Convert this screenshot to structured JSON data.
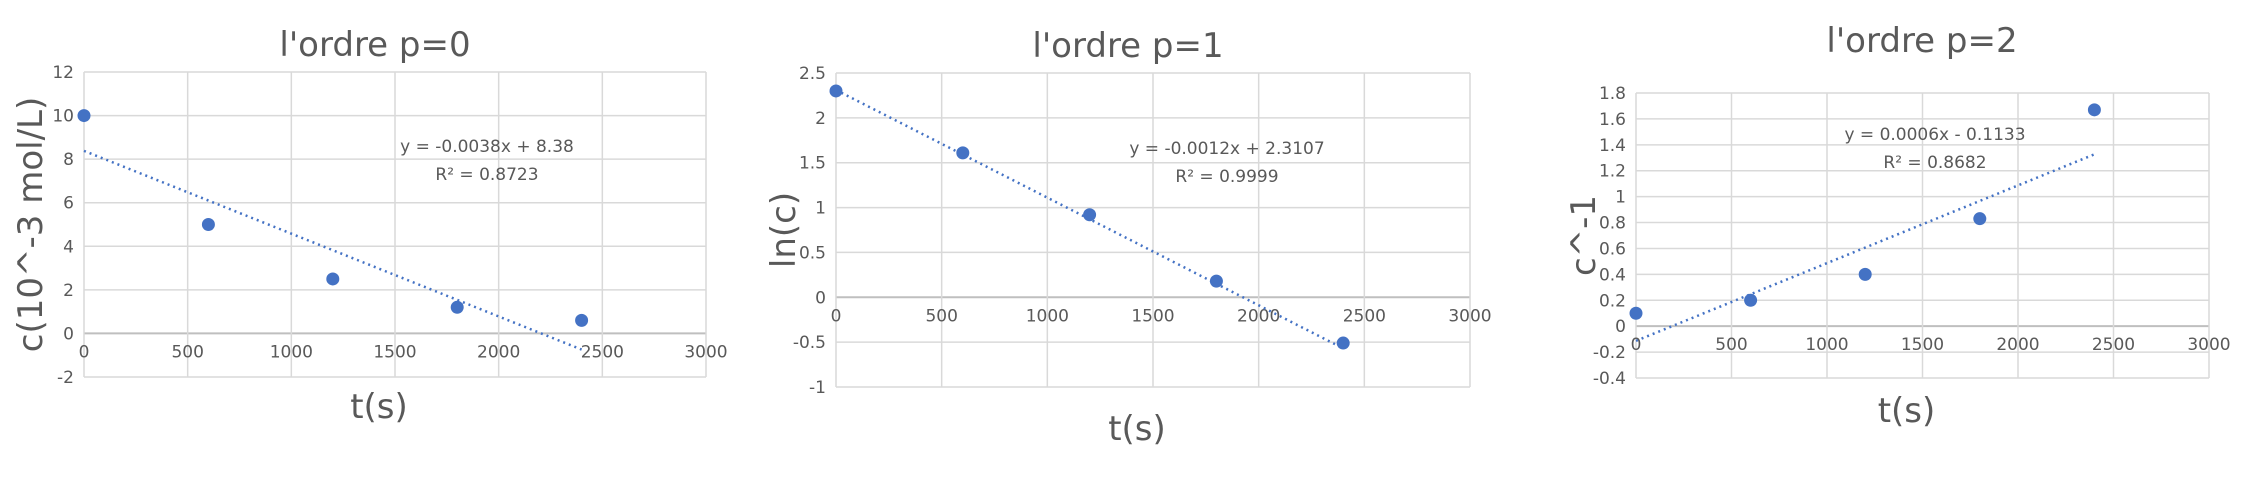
{
  "chart_data": [
    {
      "type": "scatter",
      "title": "l'ordre p=0",
      "xlabel": "t(s)",
      "ylabel": "c(10^-3 mol/L)",
      "xlim": [
        0,
        3000
      ],
      "ylim": [
        -2,
        12
      ],
      "xticks": [
        0,
        500,
        1000,
        1500,
        2000,
        2500,
        3000
      ],
      "yticks": [
        -2,
        0,
        2,
        4,
        6,
        8,
        10,
        12
      ],
      "grid": true,
      "legend": "none",
      "series": [
        {
          "x": [
            0,
            600,
            1200,
            1800,
            2400
          ],
          "y": [
            10,
            5,
            2.5,
            1.2,
            0.6
          ]
        }
      ],
      "trendline": {
        "slope": -0.0038,
        "intercept": 8.38,
        "x_range": [
          0,
          2400
        ],
        "equation": "y = -0.0038x + 8.38",
        "r2": "R² = 0.8723"
      }
    },
    {
      "type": "scatter",
      "title": "l'ordre p=1",
      "xlabel": "t(s)",
      "ylabel": "ln(c)",
      "xlim": [
        0,
        3000
      ],
      "ylim": [
        -1,
        2.5
      ],
      "xticks": [
        0,
        500,
        1000,
        1500,
        2000,
        2500,
        3000
      ],
      "yticks": [
        -1,
        -0.5,
        0,
        0.5,
        1,
        1.5,
        2,
        2.5
      ],
      "grid": true,
      "legend": "none",
      "series": [
        {
          "x": [
            0,
            600,
            1200,
            1800,
            2400
          ],
          "y": [
            2.3,
            1.61,
            0.92,
            0.18,
            -0.51
          ]
        }
      ],
      "trendline": {
        "slope": -0.0012,
        "intercept": 2.3107,
        "x_range": [
          0,
          2400
        ],
        "equation": "y = -0.0012x + 2.3107",
        "r2": "R² = 0.9999"
      }
    },
    {
      "type": "scatter",
      "title": "l'ordre p=2",
      "xlabel": "t(s)",
      "ylabel": "c^-1",
      "xlim": [
        0,
        3000
      ],
      "ylim": [
        -0.4,
        1.8
      ],
      "xticks": [
        0,
        500,
        1000,
        1500,
        2000,
        2500,
        3000
      ],
      "yticks": [
        -0.4,
        -0.2,
        0,
        0.2,
        0.4,
        0.6,
        0.8,
        1,
        1.2,
        1.4,
        1.6,
        1.8
      ],
      "grid": true,
      "legend": "none",
      "series": [
        {
          "x": [
            0,
            600,
            1200,
            1800,
            2400
          ],
          "y": [
            0.1,
            0.2,
            0.4,
            0.83,
            1.67
          ]
        }
      ],
      "trendline": {
        "slope": 0.0006,
        "intercept": -0.1133,
        "x_range": [
          0,
          2400
        ],
        "equation": "y = 0.0006x - 0.1133",
        "r2": "R² = 0.8682"
      }
    }
  ]
}
